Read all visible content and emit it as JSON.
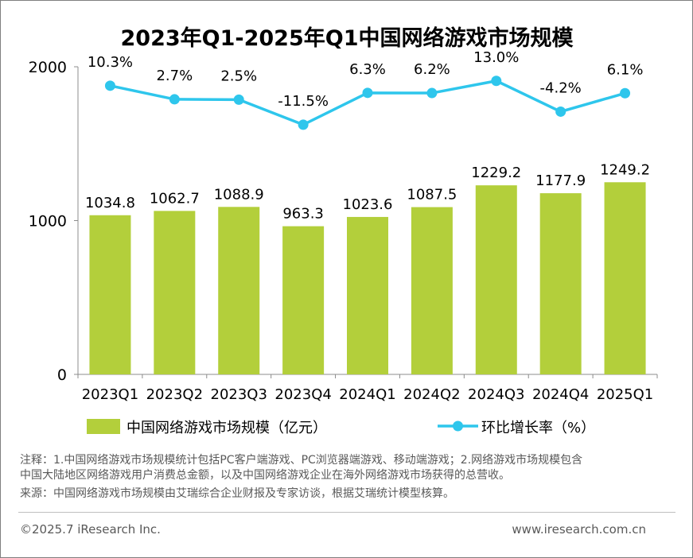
{
  "chart_data": {
    "type": "bar",
    "title": "2023年Q1-2025年Q1中国网络游戏市场规模",
    "categories": [
      "2023Q1",
      "2023Q2",
      "2023Q3",
      "2023Q4",
      "2024Q1",
      "2024Q2",
      "2024Q3",
      "2024Q4",
      "2025Q1"
    ],
    "series": [
      {
        "name": "中国网络游戏市场规模（亿元）",
        "type": "bar",
        "color": "#b3cf3b",
        "values": [
          1034.8,
          1062.7,
          1088.9,
          963.3,
          1023.6,
          1087.5,
          1229.2,
          1177.9,
          1249.2
        ],
        "labels": [
          "1034.8",
          "1062.7",
          "1088.9",
          "963.3",
          "1023.6",
          "1087.5",
          "1229.2",
          "1177.9",
          "1249.2"
        ]
      },
      {
        "name": "环比增长率（%）",
        "type": "line",
        "color": "#2ec6ec",
        "values": [
          10.3,
          2.7,
          2.5,
          -11.5,
          6.3,
          6.2,
          13.0,
          -4.2,
          6.1
        ],
        "labels": [
          "10.3%",
          "2.7%",
          "2.5%",
          "-11.5%",
          "6.3%",
          "6.2%",
          "13.0%",
          "-4.2%",
          "6.1%"
        ]
      }
    ],
    "y_ticks": [
      "0",
      "1000",
      "2000"
    ],
    "ylim": [
      0,
      2000
    ],
    "grid": false,
    "legend_position": "bottom"
  },
  "notes": {
    "line1": "注释：1.中国网络游戏市场规模统计包括PC客户端游戏、PC浏览器端游戏、移动端游戏；2.网络游戏市场规模包含",
    "line2": "中国大陆地区网络游戏用户消费总金额，以及中国网络游戏企业在海外网络游戏市场获得的总营收。",
    "line3": "来源：中国网络游戏市场规模由艾瑞综合企业财报及专家访谈，根据艾瑞统计模型核算。"
  },
  "footer": {
    "copyright": "©2025.7 iResearch Inc.",
    "website": "www.iresearch.com.cn"
  }
}
